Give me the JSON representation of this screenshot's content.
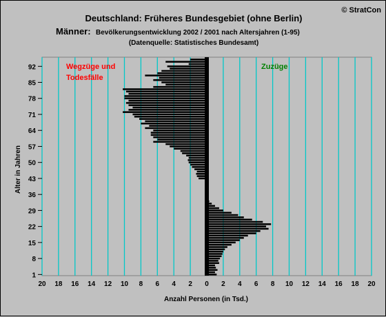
{
  "chart_data": {
    "type": "bar",
    "orientation": "horizontal",
    "copyright": "© StratCon",
    "title": "Deutschland: Früheres Bundesgebiet (ohne Berlin)",
    "subtitle_big": "Männer:",
    "subtitle_small": "Bevölkerungsentwicklung 2002 / 2001 nach Altersjahren (1-95)",
    "source": "(Datenquelle: Statistisches Bundesamt)",
    "xlabel": "Anzahl Personen (in Tsd.)",
    "ylabel": "Alter in Jahren",
    "xlim": [
      -20,
      20
    ],
    "ylim": [
      1,
      96
    ],
    "x_tick_labels": [
      "20",
      "18",
      "16",
      "14",
      "12",
      "10",
      "8",
      "6",
      "4",
      "2",
      "0",
      "2",
      "4",
      "6",
      "8",
      "10",
      "12",
      "14",
      "16",
      "18",
      "20"
    ],
    "x_tick_values": [
      -20,
      -18,
      -16,
      -14,
      -12,
      -10,
      -8,
      -6,
      -4,
      -2,
      0,
      2,
      4,
      6,
      8,
      10,
      12,
      14,
      16,
      18,
      20
    ],
    "y_ticks": [
      1,
      8,
      15,
      22,
      29,
      36,
      43,
      50,
      57,
      64,
      71,
      78,
      85,
      92
    ],
    "grid": true,
    "annotations": [
      {
        "text": "Wegzüge und",
        "color": "#ff0000",
        "side": "left"
      },
      {
        "text": "Todesfälle",
        "color": "#ff0000",
        "side": "left"
      },
      {
        "text": "Zuzüge",
        "color": "#008000",
        "side": "right"
      }
    ],
    "colors": {
      "background": "#c0c0c0",
      "grid": "#00c8c8",
      "bar": "#000000",
      "frame": "#000000"
    },
    "ages": [
      1,
      2,
      3,
      4,
      5,
      6,
      7,
      8,
      9,
      10,
      11,
      12,
      13,
      14,
      15,
      16,
      17,
      18,
      19,
      20,
      21,
      22,
      23,
      24,
      25,
      26,
      27,
      28,
      29,
      30,
      31,
      32,
      33,
      34,
      35,
      36,
      37,
      38,
      39,
      40,
      41,
      42,
      43,
      44,
      45,
      46,
      47,
      48,
      49,
      50,
      51,
      52,
      53,
      54,
      55,
      56,
      57,
      58,
      59,
      60,
      61,
      62,
      63,
      64,
      65,
      66,
      67,
      68,
      69,
      70,
      71,
      72,
      73,
      74,
      75,
      76,
      77,
      78,
      79,
      80,
      81,
      82,
      83,
      84,
      85,
      86,
      87,
      88,
      89,
      90,
      91,
      92,
      93,
      94,
      95
    ],
    "values": [
      1.2,
      1.0,
      1.3,
      1.1,
      1.0,
      1.5,
      1.4,
      1.6,
      1.8,
      1.9,
      2.0,
      2.2,
      2.5,
      3.0,
      3.5,
      4.0,
      4.5,
      5.0,
      6.0,
      6.5,
      7.5,
      7.2,
      7.8,
      6.8,
      5.5,
      4.5,
      3.8,
      3.0,
      2.0,
      1.5,
      1.0,
      0.6,
      0.3,
      0.0,
      0.0,
      0.0,
      0.0,
      0.0,
      0.0,
      0.0,
      0.0,
      0.0,
      -1.0,
      -1.2,
      -1.3,
      -1.2,
      -1.5,
      -1.8,
      -2.0,
      -2.2,
      -2.3,
      -2.2,
      -2.5,
      -3.0,
      -3.2,
      -4.0,
      -4.5,
      -5.0,
      -6.5,
      -6.0,
      -6.5,
      -6.8,
      -6.8,
      -6.5,
      -7.5,
      -7.0,
      -8.0,
      -7.5,
      -8.2,
      -8.8,
      -9.0,
      -10.2,
      -9.5,
      -9.0,
      -9.5,
      -9.8,
      -9.5,
      -10.0,
      -10.0,
      -9.5,
      -9.8,
      -10.2,
      -6.5,
      -5.0,
      -5.5,
      -6.5,
      -5.8,
      -7.5,
      -6.0,
      -5.5,
      -4.5,
      -4.8,
      -2.2,
      -5.0,
      -2.0
    ]
  }
}
